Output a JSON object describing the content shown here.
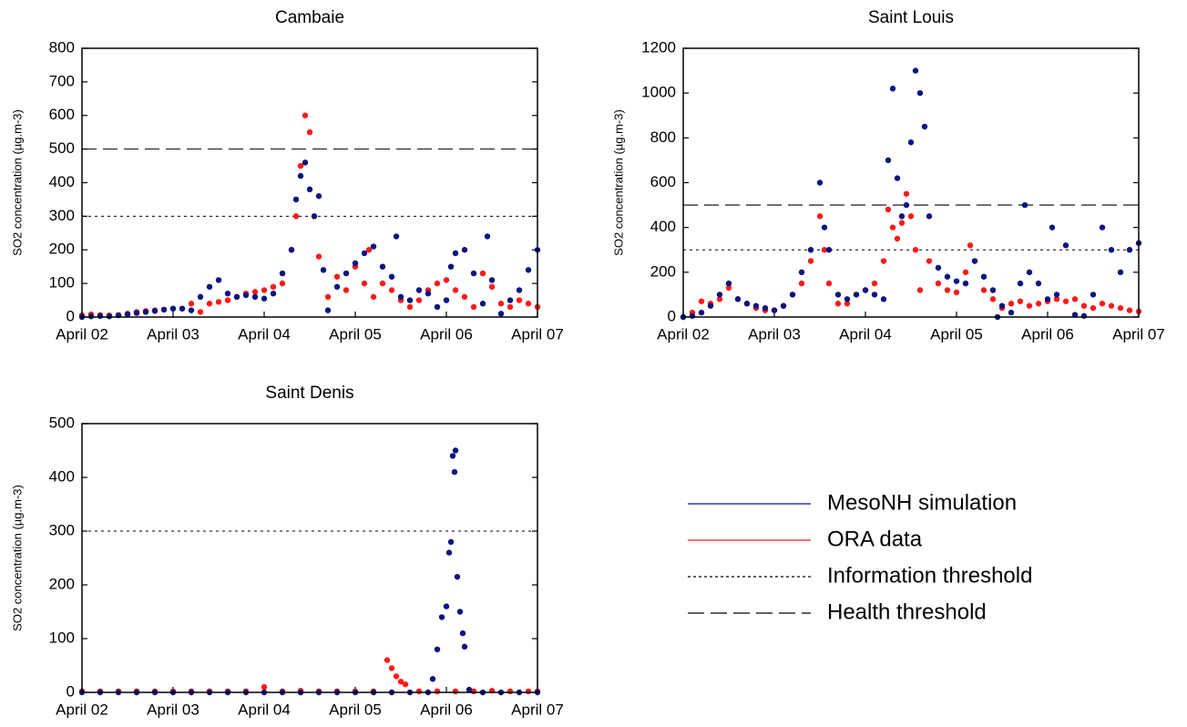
{
  "chart_data": [
    {
      "type": "scatter",
      "title": "Cambaie",
      "y_label": "SO2 concentration (µg.m-3)",
      "xlim": [
        2,
        7
      ],
      "ylim": [
        0,
        800
      ],
      "xticks": [
        {
          "value": 2,
          "label": "April 02"
        },
        {
          "value": 3,
          "label": "April 03"
        },
        {
          "value": 4,
          "label": "April 04"
        },
        {
          "value": 5,
          "label": "April 05"
        },
        {
          "value": 6,
          "label": "April 06"
        },
        {
          "value": 7,
          "label": "April 07"
        }
      ],
      "yticks": [
        0,
        100,
        200,
        300,
        400,
        500,
        600,
        700,
        800
      ],
      "hlines": [
        {
          "value": 300,
          "style": "dotted"
        },
        {
          "value": 500,
          "style": "dashed"
        }
      ],
      "series": [
        {
          "color": "#ff1a1a",
          "x": [
            2.0,
            2.1,
            2.2,
            2.3,
            2.4,
            2.5,
            2.6,
            2.7,
            2.8,
            2.9,
            3.0,
            3.1,
            3.2,
            3.3,
            3.4,
            3.5,
            3.6,
            3.7,
            3.8,
            3.9,
            4.0,
            4.1,
            4.2,
            4.3,
            4.35,
            4.4,
            4.45,
            4.5,
            4.55,
            4.6,
            4.7,
            4.8,
            4.9,
            5.0,
            5.1,
            5.15,
            5.2,
            5.3,
            5.4,
            5.5,
            5.6,
            5.7,
            5.8,
            5.9,
            6.0,
            6.1,
            6.2,
            6.3,
            6.4,
            6.5,
            6.6,
            6.7,
            6.8,
            6.9,
            7.0
          ],
          "values": [
            5,
            8,
            6,
            5,
            6,
            10,
            15,
            18,
            20,
            22,
            25,
            25,
            40,
            15,
            40,
            45,
            50,
            60,
            70,
            75,
            80,
            90,
            100,
            200,
            300,
            450,
            600,
            550,
            300,
            180,
            60,
            120,
            80,
            150,
            100,
            200,
            60,
            100,
            80,
            50,
            30,
            50,
            80,
            100,
            110,
            80,
            60,
            30,
            130,
            90,
            40,
            30,
            50,
            40,
            30
          ]
        },
        {
          "color": "#0a1580",
          "x": [
            2.0,
            2.1,
            2.2,
            2.3,
            2.4,
            2.5,
            2.6,
            2.7,
            2.8,
            2.9,
            3.0,
            3.1,
            3.2,
            3.3,
            3.4,
            3.5,
            3.6,
            3.7,
            3.8,
            3.9,
            4.0,
            4.1,
            4.2,
            4.3,
            4.35,
            4.4,
            4.45,
            4.5,
            4.55,
            4.6,
            4.65,
            4.7,
            4.8,
            4.9,
            5.0,
            5.1,
            5.2,
            5.3,
            5.4,
            5.45,
            5.5,
            5.6,
            5.7,
            5.8,
            5.9,
            6.0,
            6.05,
            6.1,
            6.2,
            6.3,
            6.4,
            6.45,
            6.5,
            6.6,
            6.7,
            6.8,
            6.9,
            7.0
          ],
          "values": [
            0,
            2,
            3,
            2,
            5,
            8,
            12,
            15,
            18,
            22,
            25,
            25,
            20,
            60,
            90,
            110,
            70,
            60,
            65,
            60,
            55,
            70,
            130,
            200,
            350,
            420,
            460,
            380,
            300,
            360,
            140,
            20,
            90,
            130,
            160,
            190,
            210,
            150,
            120,
            240,
            60,
            50,
            80,
            70,
            30,
            50,
            150,
            190,
            200,
            130,
            40,
            240,
            110,
            10,
            50,
            80,
            140,
            200
          ]
        }
      ]
    },
    {
      "type": "scatter",
      "title": "Saint Louis",
      "y_label": "SO2 concentration (µg.m-3)",
      "xlim": [
        2,
        7
      ],
      "ylim": [
        0,
        1200
      ],
      "xticks": [
        {
          "value": 2,
          "label": "April 02"
        },
        {
          "value": 3,
          "label": "April 03"
        },
        {
          "value": 4,
          "label": "April 04"
        },
        {
          "value": 5,
          "label": "April 05"
        },
        {
          "value": 6,
          "label": "April 06"
        },
        {
          "value": 7,
          "label": "April 07"
        }
      ],
      "yticks": [
        0,
        200,
        400,
        600,
        800,
        1000,
        1200
      ],
      "hlines": [
        {
          "value": 300,
          "style": "dotted"
        },
        {
          "value": 500,
          "style": "dashed"
        }
      ],
      "series": [
        {
          "color": "#ff1a1a",
          "x": [
            2.0,
            2.1,
            2.2,
            2.3,
            2.4,
            2.5,
            2.6,
            2.7,
            2.8,
            2.9,
            3.0,
            3.1,
            3.2,
            3.3,
            3.4,
            3.5,
            3.55,
            3.6,
            3.7,
            3.8,
            3.9,
            4.0,
            4.1,
            4.2,
            4.25,
            4.3,
            4.35,
            4.4,
            4.45,
            4.5,
            4.55,
            4.6,
            4.7,
            4.8,
            4.9,
            5.0,
            5.1,
            5.15,
            5.2,
            5.3,
            5.4,
            5.5,
            5.6,
            5.7,
            5.8,
            5.9,
            6.0,
            6.1,
            6.2,
            6.3,
            6.4,
            6.5,
            6.6,
            6.7,
            6.8,
            6.9,
            7.0
          ],
          "values": [
            0,
            20,
            70,
            60,
            80,
            130,
            80,
            60,
            40,
            30,
            30,
            50,
            100,
            150,
            250,
            450,
            300,
            150,
            60,
            60,
            100,
            120,
            150,
            250,
            480,
            400,
            350,
            420,
            550,
            450,
            300,
            120,
            250,
            150,
            120,
            110,
            200,
            320,
            250,
            120,
            80,
            40,
            60,
            70,
            50,
            60,
            70,
            80,
            70,
            80,
            50,
            40,
            60,
            50,
            40,
            30,
            25
          ]
        },
        {
          "color": "#0a1580",
          "x": [
            2.0,
            2.1,
            2.2,
            2.3,
            2.4,
            2.5,
            2.6,
            2.7,
            2.8,
            2.9,
            3.0,
            3.1,
            3.2,
            3.3,
            3.4,
            3.5,
            3.55,
            3.6,
            3.7,
            3.8,
            3.9,
            4.0,
            4.1,
            4.2,
            4.25,
            4.3,
            4.35,
            4.4,
            4.45,
            4.5,
            4.55,
            4.6,
            4.65,
            4.7,
            4.8,
            4.9,
            5.0,
            5.1,
            5.2,
            5.3,
            5.4,
            5.45,
            5.5,
            5.6,
            5.7,
            5.75,
            5.8,
            5.9,
            6.0,
            6.05,
            6.1,
            6.2,
            6.3,
            6.4,
            6.5,
            6.6,
            6.7,
            6.8,
            6.9,
            7.0
          ],
          "values": [
            0,
            5,
            20,
            50,
            100,
            150,
            80,
            60,
            50,
            40,
            30,
            50,
            100,
            200,
            300,
            600,
            400,
            300,
            100,
            80,
            100,
            120,
            100,
            80,
            700,
            1020,
            620,
            450,
            500,
            780,
            1100,
            1000,
            850,
            450,
            220,
            180,
            160,
            150,
            250,
            180,
            120,
            0,
            50,
            20,
            150,
            500,
            200,
            150,
            80,
            400,
            100,
            320,
            10,
            5,
            100,
            400,
            300,
            200,
            300,
            330
          ]
        }
      ]
    },
    {
      "type": "scatter",
      "title": "Saint Denis",
      "y_label": "SO2 concentration (µg.m-3)",
      "xlim": [
        2,
        7
      ],
      "ylim": [
        0,
        500
      ],
      "xticks": [
        {
          "value": 2,
          "label": "April 02"
        },
        {
          "value": 3,
          "label": "April 03"
        },
        {
          "value": 4,
          "label": "April 04"
        },
        {
          "value": 5,
          "label": "April 05"
        },
        {
          "value": 6,
          "label": "April 06"
        },
        {
          "value": 7,
          "label": "April 07"
        }
      ],
      "yticks": [
        0,
        100,
        200,
        300,
        400,
        500
      ],
      "hlines": [
        {
          "value": 300,
          "style": "dotted"
        }
      ],
      "series": [
        {
          "color": "#ff1a1a",
          "x": [
            2.0,
            2.2,
            2.4,
            2.6,
            2.8,
            3.0,
            3.2,
            3.4,
            3.6,
            3.8,
            4.0,
            4.2,
            4.4,
            4.6,
            4.8,
            5.0,
            5.2,
            5.35,
            5.4,
            5.45,
            5.5,
            5.55,
            5.7,
            5.9,
            6.1,
            6.3,
            6.5,
            6.7,
            6.9,
            7.0
          ],
          "values": [
            2,
            2,
            2,
            2,
            2,
            2,
            2,
            2,
            2,
            2,
            10,
            2,
            3,
            2,
            2,
            2,
            2,
            60,
            45,
            30,
            20,
            15,
            2,
            2,
            2,
            2,
            3,
            2,
            2,
            2
          ]
        },
        {
          "color": "#0a1580",
          "x": [
            2.0,
            2.2,
            2.4,
            2.6,
            2.8,
            3.0,
            3.2,
            3.4,
            3.6,
            3.8,
            4.0,
            4.2,
            4.4,
            4.6,
            4.8,
            5.0,
            5.2,
            5.4,
            5.6,
            5.8,
            5.85,
            5.9,
            5.95,
            6.0,
            6.03,
            6.05,
            6.07,
            6.09,
            6.1,
            6.12,
            6.15,
            6.18,
            6.2,
            6.25,
            6.4,
            6.6,
            6.8,
            7.0
          ],
          "values": [
            0,
            0,
            0,
            0,
            0,
            0,
            0,
            0,
            0,
            0,
            0,
            0,
            0,
            0,
            0,
            0,
            0,
            0,
            0,
            0,
            25,
            80,
            140,
            160,
            260,
            280,
            440,
            410,
            450,
            215,
            150,
            110,
            85,
            5,
            0,
            0,
            0,
            0
          ]
        }
      ]
    }
  ],
  "legend": {
    "entries": [
      {
        "label": "MesoNH simulation",
        "color": "#0a1580",
        "style": "solid"
      },
      {
        "label": "ORA data",
        "color": "#ff1a1a",
        "style": "solid"
      },
      {
        "label": "Information threshold",
        "color": "#000000",
        "style": "dotted"
      },
      {
        "label": "Health threshold",
        "color": "#000000",
        "style": "dashed"
      }
    ]
  }
}
